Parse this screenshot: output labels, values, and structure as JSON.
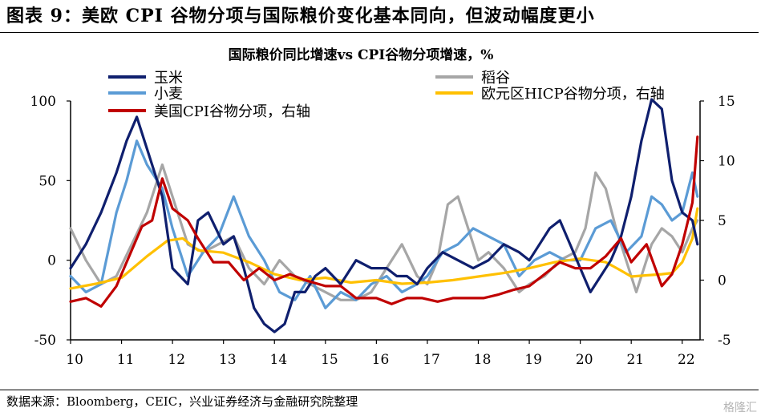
{
  "figure_title": "图表 9：美欧 CPI 谷物分项与国际粮价变化基本同向，但波动幅度更小",
  "source": "数据来源：Bloomberg，CEIC，兴业证券经济与金融研究院整理",
  "watermark": "格隆汇",
  "chart_data": {
    "type": "line",
    "title": "国际粮价同比增速vs CPI谷物分项增速，%",
    "x_ticks": [
      "10",
      "11",
      "12",
      "13",
      "14",
      "15",
      "16",
      "17",
      "18",
      "19",
      "20",
      "21",
      "22"
    ],
    "x_range": [
      2010,
      2022.35
    ],
    "ylim_left": [
      -50,
      100
    ],
    "ylim_right": [
      -5,
      15
    ],
    "y_ticks_left": [
      -50,
      0,
      50,
      100
    ],
    "y_ticks_right": [
      -5,
      0,
      5,
      10,
      15
    ],
    "grid": false,
    "legend_position": "top",
    "series": [
      {
        "name": "玉米",
        "axis": "left",
        "color": "#0f1f6e",
        "width": 3.2,
        "x": [
          2010.0,
          2010.3,
          2010.6,
          2010.9,
          2011.1,
          2011.3,
          2011.5,
          2011.8,
          2012.0,
          2012.3,
          2012.5,
          2012.7,
          2013.0,
          2013.2,
          2013.4,
          2013.6,
          2013.8,
          2014.0,
          2014.2,
          2014.4,
          2014.6,
          2014.8,
          2015.0,
          2015.3,
          2015.6,
          2015.9,
          2016.2,
          2016.4,
          2016.6,
          2016.8,
          2017.0,
          2017.3,
          2017.6,
          2017.9,
          2018.2,
          2018.5,
          2018.8,
          2019.0,
          2019.2,
          2019.4,
          2019.6,
          2019.8,
          2020.0,
          2020.2,
          2020.4,
          2020.6,
          2020.8,
          2021.0,
          2021.2,
          2021.4,
          2021.6,
          2021.8,
          2022.0,
          2022.2,
          2022.3
        ],
        "values": [
          -5,
          10,
          30,
          55,
          75,
          90,
          70,
          40,
          -5,
          -15,
          25,
          30,
          10,
          15,
          -5,
          -30,
          -40,
          -45,
          -40,
          -20,
          -20,
          -10,
          -5,
          -15,
          0,
          -5,
          -5,
          -10,
          -10,
          -15,
          -5,
          5,
          0,
          -5,
          0,
          10,
          5,
          0,
          10,
          20,
          25,
          10,
          -5,
          -20,
          -10,
          0,
          15,
          40,
          75,
          120,
          95,
          50,
          30,
          25,
          10
        ]
      },
      {
        "name": "稻谷",
        "axis": "left",
        "color": "#a6a6a6",
        "width": 3.2,
        "x": [
          2010.0,
          2010.3,
          2010.6,
          2010.9,
          2011.2,
          2011.5,
          2011.8,
          2012.0,
          2012.3,
          2012.6,
          2012.9,
          2013.2,
          2013.5,
          2013.8,
          2014.1,
          2014.4,
          2014.7,
          2015.0,
          2015.3,
          2015.6,
          2015.9,
          2016.2,
          2016.5,
          2016.8,
          2017.0,
          2017.2,
          2017.4,
          2017.6,
          2017.8,
          2018.0,
          2018.2,
          2018.5,
          2018.8,
          2019.0,
          2019.3,
          2019.6,
          2019.9,
          2020.1,
          2020.3,
          2020.5,
          2020.7,
          2020.9,
          2021.1,
          2021.4,
          2021.6,
          2021.8,
          2022.0,
          2022.2,
          2022.3
        ],
        "values": [
          20,
          0,
          -15,
          -10,
          10,
          30,
          60,
          40,
          10,
          5,
          10,
          15,
          -5,
          -15,
          0,
          -10,
          -15,
          -20,
          -25,
          -25,
          -20,
          -5,
          10,
          -10,
          -15,
          0,
          35,
          40,
          20,
          0,
          5,
          -5,
          -20,
          -15,
          -10,
          0,
          5,
          20,
          55,
          45,
          20,
          0,
          -20,
          10,
          20,
          15,
          5,
          20,
          25
        ]
      },
      {
        "name": "小麦",
        "axis": "left",
        "color": "#5b9bd5",
        "width": 3.2,
        "x": [
          2010.0,
          2010.3,
          2010.6,
          2010.9,
          2011.1,
          2011.3,
          2011.5,
          2011.8,
          2012.0,
          2012.3,
          2012.6,
          2012.9,
          2013.2,
          2013.5,
          2013.8,
          2014.1,
          2014.4,
          2014.7,
          2015.0,
          2015.3,
          2015.6,
          2015.9,
          2016.2,
          2016.5,
          2016.8,
          2017.0,
          2017.3,
          2017.6,
          2017.9,
          2018.2,
          2018.5,
          2018.8,
          2019.1,
          2019.4,
          2019.7,
          2020.0,
          2020.3,
          2020.6,
          2020.9,
          2021.2,
          2021.4,
          2021.6,
          2021.8,
          2022.0,
          2022.2,
          2022.3
        ],
        "values": [
          -10,
          -20,
          -15,
          30,
          50,
          75,
          60,
          45,
          20,
          -10,
          5,
          15,
          40,
          15,
          0,
          -20,
          -25,
          -10,
          -30,
          -20,
          -25,
          -15,
          -10,
          -20,
          -15,
          -10,
          5,
          10,
          20,
          15,
          10,
          -10,
          0,
          5,
          0,
          0,
          20,
          25,
          5,
          15,
          40,
          35,
          25,
          30,
          55,
          40
        ]
      },
      {
        "name": "欧元区HICP谷物分项，右轴",
        "axis": "right",
        "color": "#ffc000",
        "width": 3.2,
        "x": [
          2010.0,
          2010.5,
          2011.0,
          2011.5,
          2011.9,
          2012.2,
          2012.5,
          2013.0,
          2013.5,
          2014.0,
          2014.5,
          2015.0,
          2015.5,
          2016.0,
          2016.5,
          2017.0,
          2017.5,
          2018.0,
          2018.5,
          2019.0,
          2019.5,
          2020.0,
          2020.5,
          2020.8,
          2021.0,
          2021.3,
          2021.6,
          2021.8,
          2022.0,
          2022.2,
          2022.3
        ],
        "values": [
          -0.7,
          -0.3,
          0.2,
          2.0,
          3.3,
          3.5,
          2.5,
          2.3,
          1.5,
          0.5,
          0.0,
          0.2,
          -0.2,
          0.0,
          -0.3,
          -0.2,
          0.0,
          0.3,
          0.6,
          1.0,
          1.5,
          1.8,
          1.5,
          0.8,
          0.3,
          0.4,
          0.5,
          0.6,
          1.5,
          3.5,
          6.0
        ]
      },
      {
        "name": "美国CPI谷物分项，右轴",
        "axis": "right",
        "color": "#c00000",
        "width": 3.2,
        "x": [
          2010.0,
          2010.3,
          2010.6,
          2010.9,
          2011.1,
          2011.4,
          2011.6,
          2011.8,
          2012.0,
          2012.3,
          2012.5,
          2012.8,
          2013.1,
          2013.4,
          2013.7,
          2014.0,
          2014.3,
          2014.6,
          2015.0,
          2015.3,
          2015.6,
          2016.0,
          2016.3,
          2016.6,
          2016.9,
          2017.2,
          2017.5,
          2017.8,
          2018.1,
          2018.4,
          2018.7,
          2019.0,
          2019.3,
          2019.6,
          2019.9,
          2020.2,
          2020.5,
          2020.8,
          2021.0,
          2021.3,
          2021.6,
          2021.8,
          2022.0,
          2022.2,
          2022.3
        ],
        "values": [
          -1.8,
          -1.5,
          -2.2,
          -0.5,
          1.5,
          4.5,
          5.0,
          8.5,
          6.0,
          5.0,
          3.5,
          1.5,
          1.5,
          0.0,
          1.0,
          0.0,
          0.5,
          0.0,
          -0.5,
          -0.5,
          -1.5,
          -1.5,
          -2.0,
          -1.5,
          -1.5,
          -1.8,
          -1.5,
          -1.5,
          -1.5,
          -1.2,
          -0.8,
          -0.5,
          0.5,
          1.5,
          1.0,
          1.0,
          2.0,
          3.5,
          1.5,
          3.0,
          -0.5,
          0.5,
          3.0,
          6.5,
          12.0
        ]
      }
    ]
  }
}
